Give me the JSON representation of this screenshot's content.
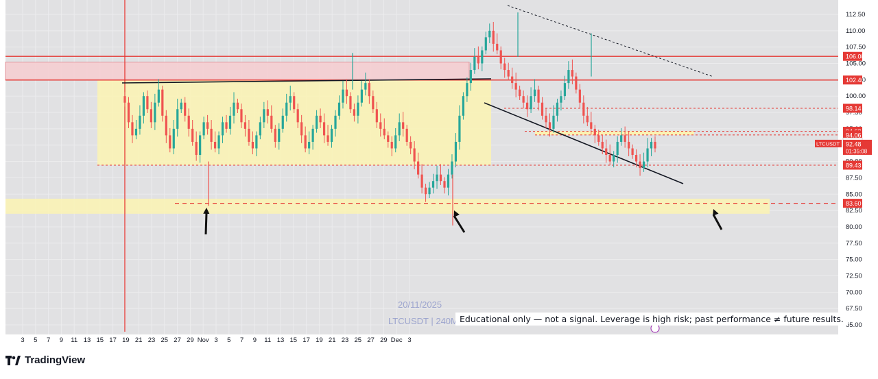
{
  "brand": {
    "name": "TradingView"
  },
  "disclaimer": "Educational only — not a signal. Leverage is high risk; past performance ≠ future results.",
  "watermark": {
    "date": "20/11/2025",
    "symbol_line": "LTCUSDT | 240M"
  },
  "colors": {
    "up": "#26a69a",
    "down": "#ef5350",
    "level": "#e53935",
    "zone_yellow": "#fbf3b3",
    "zone_red": "#f6cfd2",
    "panel_bg": "#e1e1e3",
    "grid": "#ececee"
  },
  "chart_data": {
    "type": "candlestick",
    "symbol": "LTCUSDT",
    "timeframe": "240",
    "ylim": [
      64,
      114
    ],
    "y_ticks": [
      65.0,
      67.5,
      70.0,
      72.5,
      75.0,
      77.5,
      80.0,
      82.5,
      85.0,
      87.5,
      90.0,
      92.5,
      95.0,
      97.5,
      100.0,
      102.5,
      105.0,
      107.5,
      110.0,
      112.5
    ],
    "x_ticks": [
      "3",
      "5",
      "7",
      "9",
      "11",
      "13",
      "15",
      "17",
      "19",
      "21",
      "23",
      "25",
      "27",
      "29",
      "Nov",
      "3",
      "5",
      "7",
      "9",
      "11",
      "13",
      "15",
      "17",
      "19",
      "21",
      "23",
      "25",
      "27",
      "29",
      "Dec",
      "3"
    ],
    "price_labels": [
      {
        "price": 106.08,
        "label": "106.08",
        "style": "solid"
      },
      {
        "price": 102.46,
        "label": "102.46",
        "style": "solid"
      },
      {
        "price": 98.14,
        "label": "98.14",
        "style": "dashed"
      },
      {
        "price": 94.62,
        "label": "94.62",
        "style": "dashed"
      },
      {
        "price": 94.06,
        "label": "94.06",
        "style": "dashed"
      },
      {
        "price": 92.9,
        "label": "92.90",
        "style": "plain"
      },
      {
        "price": 89.43,
        "label": "89.43",
        "style": "dashed"
      },
      {
        "price": 83.6,
        "label": "83.60",
        "style": "dashed"
      }
    ],
    "last_price": {
      "symbol": "LTCUSDT",
      "price": "92.48",
      "countdown": "01:35:08"
    },
    "zones": [
      {
        "name": "range",
        "from": 89.43,
        "to": 102.46,
        "start_day": 9,
        "end_day": 39
      },
      {
        "name": "supply",
        "from": 102.46,
        "to": 105.2,
        "start_day": 11,
        "end_day": 38.5
      },
      {
        "name": "demand",
        "from": 82.0,
        "to": 84.3,
        "start_day": 1,
        "end_day": 62
      }
    ],
    "series_close": [
      99,
      96,
      94,
      95,
      97,
      100,
      98,
      96,
      99,
      101,
      97,
      94,
      92,
      95,
      98,
      99,
      97,
      95,
      93,
      91,
      94,
      96,
      95,
      93,
      92,
      94,
      96,
      95,
      97,
      99,
      98,
      96,
      95,
      93,
      92,
      94,
      96,
      98,
      97,
      95,
      93,
      95,
      97,
      99,
      100,
      98,
      96,
      94,
      92,
      93,
      95,
      97,
      96,
      94,
      93,
      95,
      97,
      99,
      101,
      100,
      98,
      97,
      99,
      101,
      102,
      100,
      98,
      96,
      95,
      94,
      93,
      92,
      94,
      96,
      95,
      93,
      92,
      90,
      88,
      86,
      85,
      86,
      87,
      88,
      87,
      86,
      88,
      90,
      93,
      97,
      100,
      102,
      104,
      106,
      105,
      107,
      109,
      110,
      108,
      107,
      105,
      104,
      103,
      102,
      101,
      100,
      99,
      98,
      100,
      101,
      99,
      97,
      96,
      95,
      97,
      99,
      100,
      102,
      104,
      103,
      101,
      99,
      97,
      96,
      95,
      94,
      93,
      92,
      91,
      90,
      91,
      93,
      94,
      93,
      92,
      91,
      90,
      89,
      90,
      92,
      93,
      92
    ],
    "trendline_label": ""
  }
}
